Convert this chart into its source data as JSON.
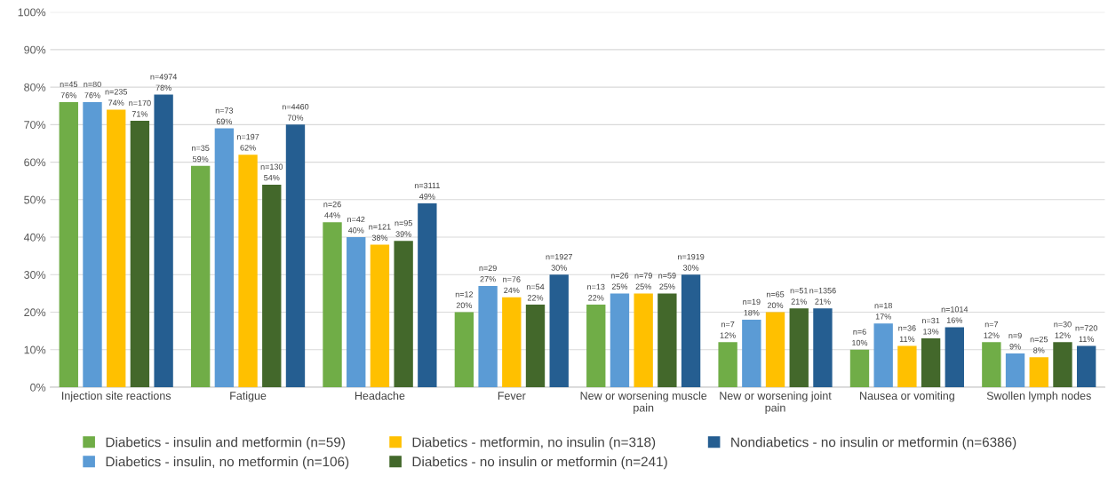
{
  "chart_data": {
    "type": "bar",
    "categories": [
      "Injection site reactions",
      "Fatigue",
      "Headache",
      "Fever",
      "New or worsening muscle\npain",
      "New or worsening joint\npain",
      "Nausea or vomiting",
      "Swollen lymph nodes"
    ],
    "series": [
      {
        "name": "Diabetics - insulin and metformin (n=59)",
        "color": "#70ad47",
        "values": [
          76,
          59,
          44,
          20,
          22,
          12,
          10,
          12
        ],
        "value_labels": [
          "n=45\n76%",
          "n=35\n59%",
          "n=26\n44%",
          "n=12\n20%",
          "n=13\n22%",
          "n=7\n12%",
          "n=6\n10%",
          "n=7\n12%"
        ]
      },
      {
        "name": "Diabetics - insulin, no metformin (n=106)",
        "color": "#5b9bd5",
        "values": [
          76,
          69,
          40,
          27,
          25,
          18,
          17,
          9
        ],
        "value_labels": [
          "n=80\n76%",
          "n=73\n69%",
          "n=42\n40%",
          "n=29\n27%",
          "n=26\n25%",
          "n=19\n18%",
          "n=18\n17%",
          "n=9\n9%"
        ]
      },
      {
        "name": "Diabetics - metformin, no insulin (n=318)",
        "color": "#ffc000",
        "values": [
          74,
          62,
          38,
          24,
          25,
          20,
          11,
          8
        ],
        "value_labels": [
          "n=235\n74%",
          "n=197\n62%",
          "n=121\n38%",
          "n=76\n24%",
          "n=79\n25%",
          "n=65\n20%",
          "n=36\n11%",
          "n=25\n8%"
        ]
      },
      {
        "name": "Diabetics - no insulin or metformin (n=241)",
        "color": "#43682b",
        "values": [
          71,
          54,
          39,
          22,
          25,
          21,
          13,
          12
        ],
        "value_labels": [
          "n=170\n71%",
          "n=130\n54%",
          "n=95\n39%",
          "n=54\n22%",
          "n=59\n25%",
          "n=51\n21%",
          "n=31\n13%",
          "n=30\n12%"
        ]
      },
      {
        "name": "Nondiabetics - no insulin or metformin (n=6386)",
        "color": "#255e91",
        "values": [
          78,
          70,
          49,
          30,
          30,
          21,
          16,
          11
        ],
        "value_labels": [
          "n=4974\n78%",
          "n=4460\n70%",
          "n=3111\n49%",
          "n=1927\n30%",
          "n=1919\n30%",
          "n=1356\n21%",
          "n=1014\n16%",
          "n=720\n11%"
        ]
      }
    ],
    "ylim": [
      0,
      100
    ],
    "yticks": [
      {
        "value": 0,
        "label": "0%"
      },
      {
        "value": 10,
        "label": "10%"
      },
      {
        "value": 20,
        "label": "20%"
      },
      {
        "value": 30,
        "label": "30%"
      },
      {
        "value": 40,
        "label": "40%"
      },
      {
        "value": 50,
        "label": "50%"
      },
      {
        "value": 60,
        "label": "60%"
      },
      {
        "value": 70,
        "label": "70%"
      },
      {
        "value": 80,
        "label": "80%"
      },
      {
        "value": 90,
        "label": "90%"
      },
      {
        "value": 100,
        "label": "100%"
      }
    ],
    "grid": "y",
    "legend": "bottom"
  }
}
